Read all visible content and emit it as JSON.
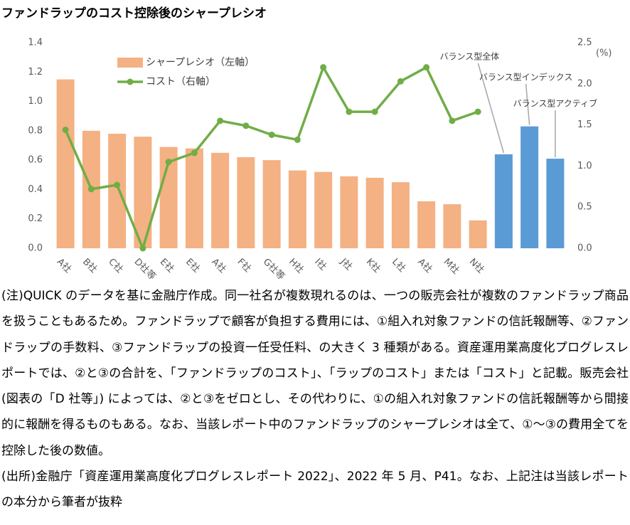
{
  "chart_data": {
    "type": "bar",
    "title": "ファンドラップのコスト控除後のシャープレシオ",
    "categories": [
      "A社",
      "B社",
      "C社",
      "D社等",
      "E社",
      "E社",
      "A社",
      "F社",
      "G社等",
      "H社",
      "I社",
      "J社",
      "K社",
      "L社",
      "A社",
      "M社",
      "N社",
      null,
      null,
      null
    ],
    "series": [
      {
        "name": "シャープレシオ（左軸）",
        "type": "bar",
        "color": "#f4b183",
        "colors": [
          "#f4b183",
          "#f4b183",
          "#f4b183",
          "#f4b183",
          "#f4b183",
          "#f4b183",
          "#f4b183",
          "#f4b183",
          "#f4b183",
          "#f4b183",
          "#f4b183",
          "#f4b183",
          "#f4b183",
          "#f4b183",
          "#f4b183",
          "#f4b183",
          "#f4b183",
          "#5b9bd5",
          "#5b9bd5",
          "#5b9bd5"
        ],
        "values": [
          1.15,
          0.8,
          0.78,
          0.76,
          0.69,
          0.68,
          0.65,
          0.62,
          0.6,
          0.53,
          0.52,
          0.49,
          0.48,
          0.45,
          0.32,
          0.3,
          0.19,
          0.64,
          0.83,
          0.61
        ]
      },
      {
        "name": "コスト（右軸）",
        "type": "line",
        "axis": "y2",
        "color": "#70ad47",
        "values": [
          1.44,
          0.72,
          0.77,
          0.0,
          1.05,
          1.16,
          1.55,
          1.49,
          1.38,
          1.32,
          2.2,
          1.66,
          1.66,
          2.03,
          2.2,
          1.55,
          1.66,
          null,
          null,
          null
        ]
      }
    ],
    "ylim": [
      0,
      1.4
    ],
    "yticks": [
      {
        "value": 0,
        "label": "0.0"
      },
      0.2,
      0.4,
      0.6,
      0.8,
      {
        "value": 1,
        "label": "1.0"
      },
      1.2,
      1.4
    ],
    "y2lim": [
      0,
      2.5
    ],
    "y2ticks": [
      {
        "value": 0,
        "label": "0.0"
      },
      0.5,
      {
        "value": 1,
        "label": "1.0"
      },
      1.5,
      {
        "value": 2,
        "label": "2.0"
      },
      2.5
    ],
    "y2label": "(%)",
    "annotations": [
      "バランス型全体",
      "バランス型インデックス",
      "バランス型アクティブ"
    ],
    "legend": "top-left",
    "grid": false
  },
  "notes": [
    "(注)QUICK のデータを基に金融庁作成。同一社名が複数現れるのは、一つの販売会社が複数のファンドラップ商品を扱うこともあるため。ファンドラップで顧客が負担する費用には、①組入れ対象ファンドの信託報酬等、②ファンドラップの手数料、③ファンドラップの投資一任受任料、の大きく 3 種類がある。資産運用業高度化プログレスレポートでは、②と③の合計を、「ファンドラップのコスト」、「ラップのコスト」または「コスト」と記載。販売会社(図表の「D 社等」) によっては、②と③をゼロとし、その代わりに、①の組入れ対象ファンドの信託報酬等から間接的に報酬を得るものもある。なお、当該レポート中のファンドラップのシャープレシオは全て、①～③の費用全てを控除した後の数値。",
    "(出所)金融庁「資産運用業高度化プログレスレポート 2022」、2022 年 5 月、P41。なお、上記注は当該レポートの本分から筆者が抜粋"
  ]
}
